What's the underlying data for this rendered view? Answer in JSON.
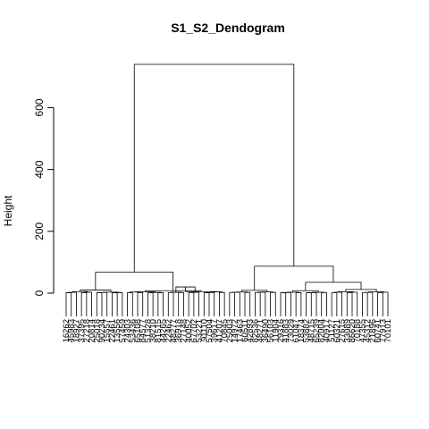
{
  "chart_data": {
    "type": "dendrogram",
    "title": "S1_S2_Dendogram",
    "xlabel": "",
    "ylabel": "Height",
    "ylim": [
      0,
      740
    ],
    "yticks": [
      0,
      200,
      400,
      600
    ],
    "grid": false,
    "leaves": [
      "16262",
      "45983",
      "18927",
      "37395",
      "27218",
      "20814",
      "25018",
      "90234",
      "15557",
      "22461",
      "13556",
      "57459",
      "24303",
      "53436",
      "65108",
      "84577",
      "51328",
      "38210",
      "81515",
      "44265",
      "22462",
      "48277",
      "36918",
      "27148",
      "40052",
      "67702",
      "53221",
      "91110",
      "57504",
      "39617",
      "41207",
      "70845",
      "25003",
      "14972",
      "17463",
      "60511",
      "42893",
      "82536",
      "48271",
      "36490",
      "56103",
      "11904",
      "29316",
      "41883",
      "73029",
      "61047",
      "18374",
      "53882",
      "48715",
      "65239",
      "82004",
      "40917",
      "51127",
      "60321",
      "27615",
      "33089",
      "86620",
      "70188",
      "47355",
      "45312",
      "21896",
      "60741",
      "77913",
      "70101"
    ],
    "merges": [
      {
        "range": [
          1,
          32
        ],
        "height": 68
      },
      {
        "range": [
          33,
          64
        ],
        "height": 87
      },
      {
        "range": [
          1,
          64
        ],
        "height": 740
      },
      {
        "range": [
          1,
          12
        ],
        "height": 10
      },
      {
        "range": [
          13,
          32
        ],
        "height": 8
      },
      {
        "range": [
          21,
          27
        ],
        "height": 20
      },
      {
        "range": [
          33,
          42
        ],
        "height": 9
      },
      {
        "range": [
          43,
          64
        ],
        "height": 35
      },
      {
        "range": [
          43,
          52
        ],
        "height": 8
      },
      {
        "range": [
          53,
          64
        ],
        "height": 12
      }
    ]
  }
}
